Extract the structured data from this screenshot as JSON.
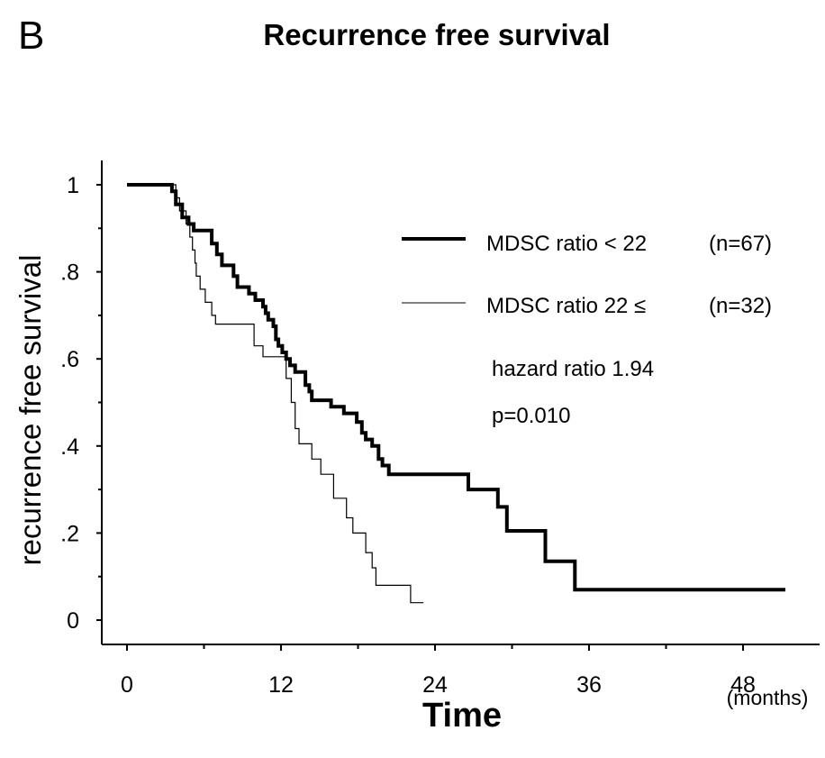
{
  "panel_label": "B",
  "chart_data": {
    "type": "line",
    "step": true,
    "title": "Recurrence free survival",
    "xlabel": "Time",
    "x_unit": "(months)",
    "ylabel": "recurrence free survival",
    "xlim": [
      0,
      50
    ],
    "ylim": [
      0,
      1
    ],
    "x_ticks": [
      {
        "value": 0,
        "label": "0"
      },
      {
        "value": 12,
        "label": "12"
      },
      {
        "value": 24,
        "label": "24"
      },
      {
        "value": 36,
        "label": "36"
      },
      {
        "value": 48,
        "label": "48"
      }
    ],
    "y_ticks": [
      {
        "value": 0,
        "label": "0"
      },
      {
        "value": 0.2,
        "label": ".2"
      },
      {
        "value": 0.4,
        "label": ".4"
      },
      {
        "value": 0.6,
        "label": ".6"
      },
      {
        "value": 0.8,
        "label": ".8"
      },
      {
        "value": 1,
        "label": "1"
      }
    ],
    "grid": false,
    "legend_position": "top-right",
    "series": [
      {
        "name": "MDSC ratio  < 22",
        "n_label": "(n=67)",
        "style": "thick",
        "color": "#000000",
        "points": [
          [
            0,
            1
          ],
          [
            3.5,
            1
          ],
          [
            3.5,
            0.985
          ],
          [
            3.8,
            0.985
          ],
          [
            3.8,
            0.955
          ],
          [
            4.3,
            0.955
          ],
          [
            4.3,
            0.925
          ],
          [
            4.8,
            0.925
          ],
          [
            4.8,
            0.91
          ],
          [
            5.2,
            0.91
          ],
          [
            5.2,
            0.895
          ],
          [
            6.6,
            0.895
          ],
          [
            6.6,
            0.865
          ],
          [
            7.0,
            0.865
          ],
          [
            7.0,
            0.84
          ],
          [
            7.4,
            0.84
          ],
          [
            7.4,
            0.815
          ],
          [
            8.3,
            0.815
          ],
          [
            8.3,
            0.79
          ],
          [
            8.6,
            0.79
          ],
          [
            8.6,
            0.765
          ],
          [
            9.5,
            0.765
          ],
          [
            9.5,
            0.75
          ],
          [
            10.0,
            0.75
          ],
          [
            10.0,
            0.735
          ],
          [
            10.6,
            0.735
          ],
          [
            10.6,
            0.72
          ],
          [
            10.8,
            0.72
          ],
          [
            10.8,
            0.705
          ],
          [
            11.0,
            0.705
          ],
          [
            11.0,
            0.69
          ],
          [
            11.4,
            0.69
          ],
          [
            11.4,
            0.675
          ],
          [
            11.6,
            0.675
          ],
          [
            11.6,
            0.645
          ],
          [
            11.8,
            0.645
          ],
          [
            11.8,
            0.63
          ],
          [
            12.1,
            0.63
          ],
          [
            12.1,
            0.615
          ],
          [
            12.4,
            0.615
          ],
          [
            12.4,
            0.6
          ],
          [
            12.7,
            0.6
          ],
          [
            12.7,
            0.585
          ],
          [
            13.1,
            0.585
          ],
          [
            13.1,
            0.57
          ],
          [
            13.9,
            0.57
          ],
          [
            13.9,
            0.54
          ],
          [
            14.2,
            0.54
          ],
          [
            14.2,
            0.525
          ],
          [
            14.4,
            0.525
          ],
          [
            14.4,
            0.505
          ],
          [
            15.9,
            0.505
          ],
          [
            15.9,
            0.49
          ],
          [
            16.9,
            0.49
          ],
          [
            16.9,
            0.475
          ],
          [
            17.9,
            0.475
          ],
          [
            17.9,
            0.455
          ],
          [
            18.3,
            0.455
          ],
          [
            18.3,
            0.43
          ],
          [
            18.6,
            0.43
          ],
          [
            18.6,
            0.415
          ],
          [
            19.1,
            0.415
          ],
          [
            19.1,
            0.4
          ],
          [
            19.6,
            0.4
          ],
          [
            19.6,
            0.37
          ],
          [
            19.9,
            0.37
          ],
          [
            19.9,
            0.355
          ],
          [
            20.4,
            0.355
          ],
          [
            20.4,
            0.335
          ],
          [
            26.6,
            0.335
          ],
          [
            26.6,
            0.3
          ],
          [
            28.9,
            0.3
          ],
          [
            28.9,
            0.26
          ],
          [
            29.6,
            0.26
          ],
          [
            29.6,
            0.205
          ],
          [
            32.6,
            0.205
          ],
          [
            32.6,
            0.135
          ],
          [
            34.9,
            0.135
          ],
          [
            34.9,
            0.07
          ],
          [
            51.3,
            0.07
          ]
        ]
      },
      {
        "name": "MDSC ratio  22 ≤",
        "n_label": "(n=32)",
        "style": "thin",
        "color": "#000000",
        "points": [
          [
            0,
            1
          ],
          [
            3.8,
            1
          ],
          [
            3.8,
            0.97
          ],
          [
            4.1,
            0.97
          ],
          [
            4.1,
            0.94
          ],
          [
            4.6,
            0.94
          ],
          [
            4.6,
            0.91
          ],
          [
            4.9,
            0.91
          ],
          [
            4.9,
            0.88
          ],
          [
            5.1,
            0.88
          ],
          [
            5.1,
            0.85
          ],
          [
            5.3,
            0.85
          ],
          [
            5.3,
            0.82
          ],
          [
            5.4,
            0.82
          ],
          [
            5.4,
            0.79
          ],
          [
            5.7,
            0.79
          ],
          [
            5.7,
            0.76
          ],
          [
            6.1,
            0.76
          ],
          [
            6.1,
            0.73
          ],
          [
            6.6,
            0.73
          ],
          [
            6.6,
            0.7
          ],
          [
            6.9,
            0.7
          ],
          [
            6.9,
            0.68
          ],
          [
            9.9,
            0.68
          ],
          [
            9.9,
            0.63
          ],
          [
            10.6,
            0.63
          ],
          [
            10.6,
            0.605
          ],
          [
            12.4,
            0.605
          ],
          [
            12.4,
            0.555
          ],
          [
            12.8,
            0.555
          ],
          [
            12.8,
            0.5
          ],
          [
            13.1,
            0.5
          ],
          [
            13.1,
            0.44
          ],
          [
            13.4,
            0.44
          ],
          [
            13.4,
            0.405
          ],
          [
            14.4,
            0.405
          ],
          [
            14.4,
            0.37
          ],
          [
            15.1,
            0.37
          ],
          [
            15.1,
            0.335
          ],
          [
            16.1,
            0.335
          ],
          [
            16.1,
            0.28
          ],
          [
            17.1,
            0.28
          ],
          [
            17.1,
            0.235
          ],
          [
            17.6,
            0.235
          ],
          [
            17.6,
            0.2
          ],
          [
            18.6,
            0.2
          ],
          [
            18.6,
            0.155
          ],
          [
            19.1,
            0.155
          ],
          [
            19.1,
            0.12
          ],
          [
            19.4,
            0.12
          ],
          [
            19.4,
            0.08
          ],
          [
            22.1,
            0.08
          ],
          [
            22.1,
            0.04
          ],
          [
            23.1,
            0.04
          ]
        ]
      }
    ],
    "annotations": [
      "hazard ratio  1.94",
      "p=0.010"
    ]
  }
}
